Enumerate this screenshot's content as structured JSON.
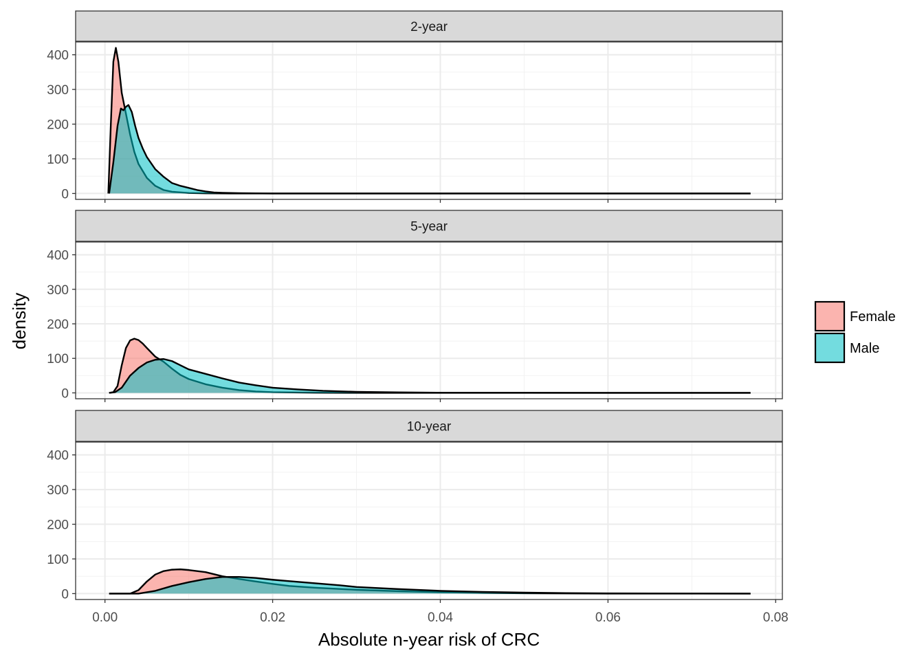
{
  "chart_data": {
    "type": "area",
    "subtype": "faceted density plot",
    "xlabel": "Absolute n-year risk of CRC",
    "ylabel": "density",
    "xlim": [
      -0.0035,
      0.0808
    ],
    "ylim": [
      -17,
      437
    ],
    "x_ticks": [
      0.0,
      0.02,
      0.04,
      0.06,
      0.08
    ],
    "x_tick_labels": [
      "0.00",
      "0.02",
      "0.04",
      "0.06",
      "0.08"
    ],
    "y_ticks": [
      0,
      100,
      200,
      300,
      400
    ],
    "y_tick_labels": [
      "0",
      "100",
      "200",
      "300",
      "400"
    ],
    "grid": true,
    "legend": {
      "position": "right",
      "entries": [
        {
          "label": "Female",
          "color": "#F8766D"
        },
        {
          "label": "Male",
          "color": "#00BFC4"
        }
      ]
    },
    "facets": [
      {
        "label": "2-year",
        "series": [
          {
            "name": "Female",
            "color": "#F8766D",
            "x": [
              0.0004,
              0.0007,
              0.001,
              0.0013,
              0.0016,
              0.002,
              0.0025,
              0.003,
              0.0035,
              0.004,
              0.005,
              0.006,
              0.007,
              0.008,
              0.01,
              0.012,
              0.015,
              0.02,
              0.03,
              0.05,
              0.077
            ],
            "y": [
              0,
              200,
              380,
              420,
              380,
              290,
              230,
              170,
              120,
              85,
              45,
              22,
              10,
              5,
              1.5,
              0.5,
              0,
              0,
              0,
              0,
              0
            ]
          },
          {
            "name": "Male",
            "color": "#00BFC4",
            "x": [
              0.0005,
              0.001,
              0.0015,
              0.0019,
              0.0022,
              0.0025,
              0.0028,
              0.0032,
              0.0036,
              0.004,
              0.0045,
              0.005,
              0.006,
              0.007,
              0.008,
              0.009,
              0.01,
              0.011,
              0.012,
              0.013,
              0.014,
              0.016,
              0.018,
              0.02,
              0.03,
              0.05,
              0.077
            ],
            "y": [
              0,
              90,
              195,
              245,
              240,
              250,
              255,
              235,
              195,
              160,
              130,
              105,
              70,
              48,
              30,
              22,
              16,
              10,
              6,
              3,
              2,
              1,
              0.5,
              0,
              0,
              0,
              0
            ]
          }
        ]
      },
      {
        "label": "5-year",
        "series": [
          {
            "name": "Female",
            "color": "#F8766D",
            "x": [
              0.0005,
              0.001,
              0.0015,
              0.002,
              0.0025,
              0.003,
              0.0035,
              0.004,
              0.0045,
              0.005,
              0.006,
              0.007,
              0.008,
              0.009,
              0.01,
              0.012,
              0.014,
              0.016,
              0.018,
              0.02,
              0.025,
              0.03,
              0.04,
              0.077
            ],
            "y": [
              0,
              2,
              20,
              80,
              130,
              152,
              157,
              153,
              143,
              130,
              105,
              90,
              70,
              52,
              40,
              25,
              15,
              8,
              4,
              2,
              0.5,
              0,
              0,
              0
            ]
          },
          {
            "name": "Male",
            "color": "#00BFC4",
            "x": [
              0.0005,
              0.0012,
              0.002,
              0.003,
              0.004,
              0.005,
              0.006,
              0.007,
              0.008,
              0.009,
              0.01,
              0.012,
              0.014,
              0.016,
              0.018,
              0.02,
              0.023,
              0.026,
              0.03,
              0.035,
              0.04,
              0.05,
              0.06,
              0.077
            ],
            "y": [
              0,
              2,
              15,
              50,
              72,
              88,
              96,
              98,
              92,
              80,
              68,
              55,
              42,
              30,
              22,
              15,
              10,
              6,
              3,
              1.5,
              0.5,
              0.2,
              0,
              0
            ]
          }
        ]
      },
      {
        "label": "10-year",
        "series": [
          {
            "name": "Female",
            "color": "#F8766D",
            "x": [
              0.0005,
              0.003,
              0.004,
              0.005,
              0.006,
              0.007,
              0.008,
              0.009,
              0.01,
              0.011,
              0.012,
              0.013,
              0.014,
              0.016,
              0.018,
              0.02,
              0.022,
              0.025,
              0.03,
              0.035,
              0.04,
              0.045,
              0.05,
              0.055,
              0.06,
              0.077
            ],
            "y": [
              0,
              0,
              10,
              35,
              55,
              65,
              69,
              70,
              68,
              65,
              62,
              56,
              50,
              42,
              35,
              28,
              22,
              17,
              11,
              7,
              4,
              2,
              1,
              0.5,
              0,
              0
            ]
          },
          {
            "name": "Male",
            "color": "#00BFC4",
            "x": [
              0.0005,
              0.004,
              0.006,
              0.008,
              0.01,
              0.012,
              0.014,
              0.016,
              0.018,
              0.02,
              0.022,
              0.025,
              0.028,
              0.03,
              0.035,
              0.04,
              0.045,
              0.05,
              0.055,
              0.06,
              0.07,
              0.077
            ],
            "y": [
              0,
              0,
              8,
              22,
              33,
              42,
              48,
              48,
              45,
              40,
              36,
              30,
              24,
              19,
              13,
              8,
              5,
              3,
              1.5,
              0.8,
              0.2,
              0
            ]
          }
        ]
      }
    ]
  }
}
